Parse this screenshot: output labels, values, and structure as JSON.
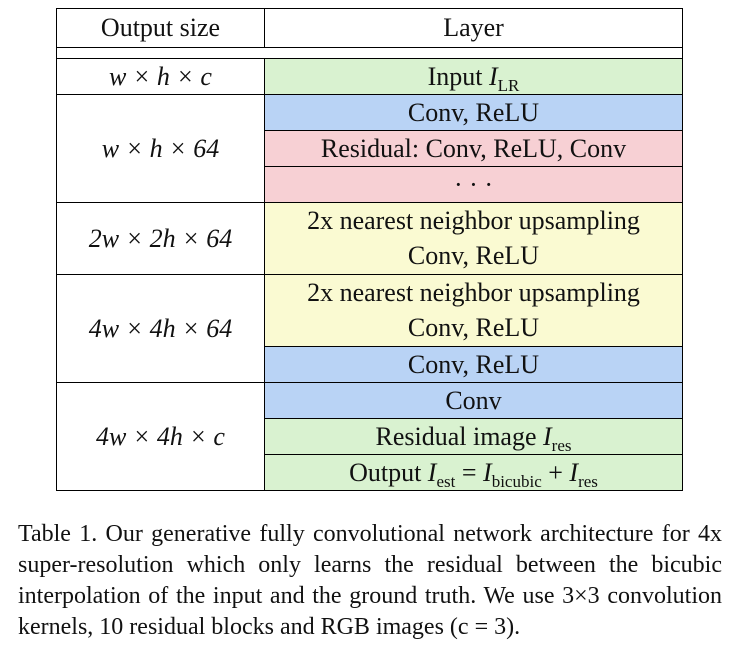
{
  "table": {
    "headers": {
      "output_size": "Output size",
      "layer": "Layer"
    },
    "rows": {
      "r1_size": "w × h × c",
      "r1_layer": "Input I_LR",
      "r2_size": "w × h × 64",
      "r2_layer_a": "Conv, ReLU",
      "r2_layer_b": "Residual: Conv, ReLU, Conv",
      "r2_layer_c": "· · ·",
      "r3_size": "2w × 2h × 64",
      "r3_layer_a": "2x nearest neighbor upsampling",
      "r3_layer_b": "Conv, ReLU",
      "r4_size": "4w × 4h × 64",
      "r4_layer_a": "2x nearest neighbor upsampling",
      "r4_layer_b": "Conv, ReLU",
      "r4_layer_c": "Conv, ReLU",
      "r5_size": "4w × 4h × c",
      "r5_layer_a": "Conv",
      "r5_layer_b": "Residual image I_res",
      "r5_layer_c": "Output I_est = I_bicubic + I_res"
    },
    "colors": {
      "input_output": "#d9f2d0",
      "conv": "#b9d3f5",
      "residual": "#f7d0d4",
      "upsampling": "#fafad2"
    }
  },
  "caption": {
    "text": "Table 1. Our generative fully convolutional network architecture for 4x super-resolution which only learns the residual between the bicubic interpolation of the input and the ground truth. We use 3×3 convolution kernels, 10 residual blocks and RGB images (c = 3)."
  }
}
